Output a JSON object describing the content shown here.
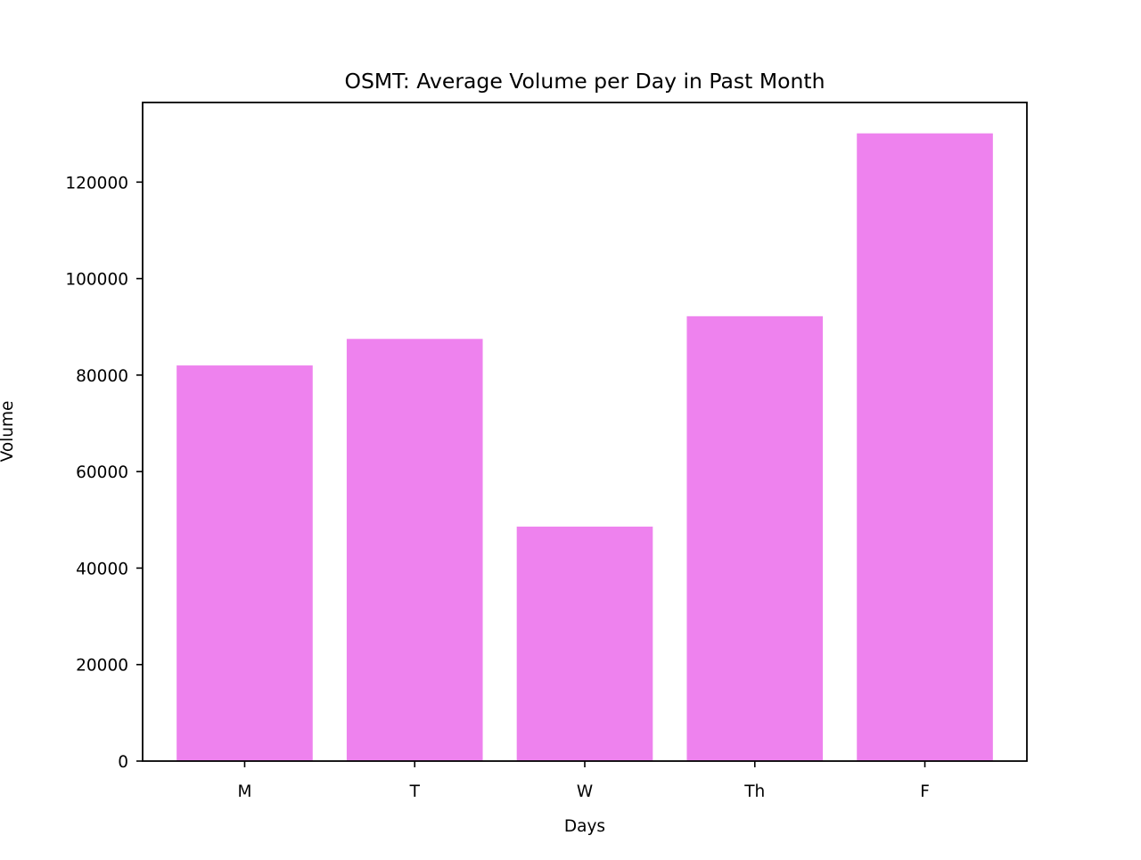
{
  "chart_data": {
    "type": "bar",
    "title": "OSMT: Average Volume per Day in Past Month",
    "xlabel": "Days",
    "ylabel": "Volume",
    "categories": [
      "M",
      "T",
      "W",
      "Th",
      "F"
    ],
    "values": [
      82000,
      87500,
      48600,
      92200,
      130100
    ],
    "ylim": [
      0,
      136500
    ],
    "yticks": [
      0,
      20000,
      40000,
      60000,
      80000,
      100000,
      120000
    ],
    "ytick_labels": [
      "0",
      "20000",
      "40000",
      "60000",
      "80000",
      "100000",
      "120000"
    ],
    "bar_color": "#ee82ee",
    "grid": false,
    "legend": "none"
  }
}
